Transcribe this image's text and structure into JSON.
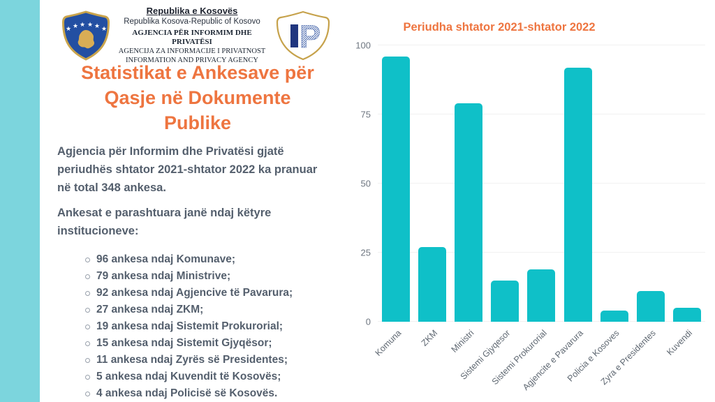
{
  "header": {
    "emblem": "kosovo-coat-of-arms",
    "line1": "Republika e Kosovës",
    "line2": "Republika Kosova-Republic of Kosovo",
    "line3": "AGJENCIA PËR INFORMIM DHE PRIVATËSI",
    "line4": "AGENCIJA ZA INFORMACIJE I PRIVATNOST",
    "line5": "INFORMATION AND PRIVACY AGENCY",
    "logo": "ip-shield-logo"
  },
  "left": {
    "title": "Statistikat e Ankesave për Qasje në Dokumente Publike",
    "title_lines": [
      "Statistikat e Ankesave për",
      "Qasje në Dokumente",
      "Publike"
    ],
    "paragraph1": "Agjencia për Informim dhe Privatësi gjatë periudhës shtator 2021-shtator 2022 ka pranuar në total 348 ankesa.",
    "paragraph2": "Ankesat e parashtuara janë ndaj këtyre institucioneve:",
    "bullets": [
      "96 ankesa ndaj Komunave;",
      "79 ankesa ndaj Ministrive;",
      "92 ankesa ndaj Agjencive të Pavarura;",
      "27 ankesa ndaj ZKM;",
      "19 ankesa ndaj Sistemit Prokurorial;",
      "15 ankesa ndaj Sistemit Gjyqësor;",
      "11 ankesa ndaj Zyrës së Presidentes;",
      "5 ankesa ndaj Kuvendit të Kosovës;",
      "4 ankesa ndaj Policisë së Kosovës."
    ]
  },
  "chart_data": {
    "type": "bar",
    "title": "Periudha shtator 2021-shtator 2022",
    "categories": [
      "Komuna",
      "ZKM",
      "Ministri",
      "Sistemi Gjyqesor",
      "Sistemi Prokurorial",
      "Agjencite e Pavarura",
      "Policia e Kosoves",
      "Zyra e Presidentes",
      "Kuvendi"
    ],
    "values": [
      96,
      27,
      79,
      15,
      19,
      92,
      4,
      11,
      5
    ],
    "xlabel": "",
    "ylabel": "",
    "ylim": [
      0,
      100
    ],
    "yticks": [
      0,
      25,
      50,
      75,
      100
    ],
    "grid": true,
    "legend": false,
    "bar_color": "#0fc0c8"
  },
  "colors": {
    "accent_orange": "#ee7540",
    "body_text": "#545f6d",
    "bar_teal": "#0fc0c8",
    "stripe_teal": "#7cd5dd",
    "emblem_blue": "#234fa2",
    "emblem_gold": "#c9a44c"
  }
}
